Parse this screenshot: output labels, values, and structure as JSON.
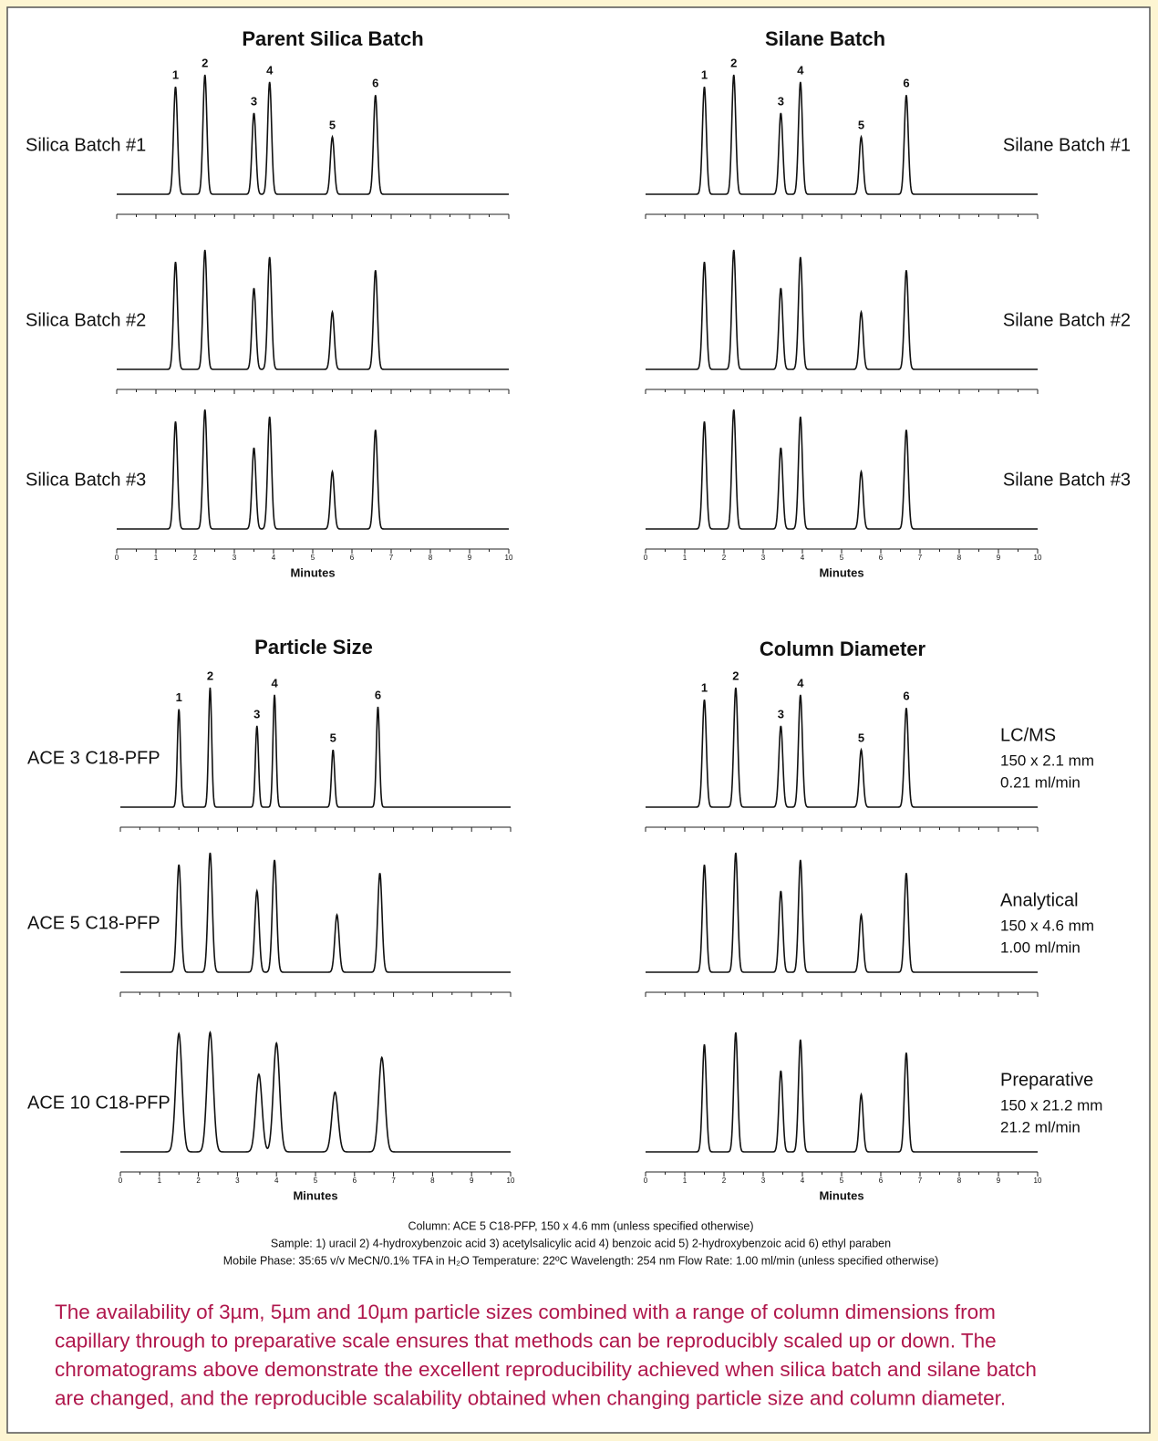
{
  "chart_data": [
    {
      "type": "chromatogram",
      "title": "Parent Silica Batch",
      "xlabel": "Minutes",
      "xlim": [
        0,
        10
      ],
      "xticks": [
        0,
        1,
        2,
        3,
        4,
        5,
        6,
        7,
        8,
        9,
        10
      ],
      "peak_labels": [
        "1",
        "2",
        "3",
        "4",
        "5",
        "6"
      ],
      "series": [
        {
          "name": "Silica Batch #1",
          "color": "#111111",
          "peak_times": [
            1.5,
            2.25,
            3.5,
            3.9,
            5.5,
            6.6
          ],
          "peak_heights": [
            90,
            100,
            68,
            94,
            48,
            83
          ],
          "peak_width": 0.05
        },
        {
          "name": "Silica Batch #2",
          "color": "#111111",
          "peak_times": [
            1.5,
            2.25,
            3.5,
            3.9,
            5.5,
            6.6
          ],
          "peak_heights": [
            90,
            100,
            68,
            94,
            48,
            83
          ],
          "peak_width": 0.05
        },
        {
          "name": "Silica Batch #3",
          "color": "#111111",
          "peak_times": [
            1.5,
            2.25,
            3.5,
            3.9,
            5.5,
            6.6
          ],
          "peak_heights": [
            90,
            100,
            68,
            94,
            48,
            83
          ],
          "peak_width": 0.05
        }
      ]
    },
    {
      "type": "chromatogram",
      "title": "Silane Batch",
      "xlabel": "Minutes",
      "xlim": [
        0,
        10
      ],
      "xticks": [
        0,
        1,
        2,
        3,
        4,
        5,
        6,
        7,
        8,
        9,
        10
      ],
      "peak_labels": [
        "1",
        "2",
        "3",
        "4",
        "5",
        "6"
      ],
      "series": [
        {
          "name": "Silane Batch #1",
          "color": "#111111",
          "peak_times": [
            1.5,
            2.25,
            3.45,
            3.95,
            5.5,
            6.65
          ],
          "peak_heights": [
            90,
            100,
            68,
            94,
            48,
            83
          ],
          "peak_width": 0.05
        },
        {
          "name": "Silane Batch #2",
          "color": "#111111",
          "peak_times": [
            1.5,
            2.25,
            3.45,
            3.95,
            5.5,
            6.65
          ],
          "peak_heights": [
            90,
            100,
            68,
            94,
            48,
            83
          ],
          "peak_width": 0.05
        },
        {
          "name": "Silane Batch #3",
          "color": "#111111",
          "peak_times": [
            1.5,
            2.25,
            3.45,
            3.95,
            5.5,
            6.65
          ],
          "peak_heights": [
            90,
            100,
            68,
            94,
            48,
            83
          ],
          "peak_width": 0.05
        }
      ]
    },
    {
      "type": "chromatogram",
      "title": "Particle Size",
      "xlabel": "Minutes",
      "xlim": [
        0,
        10
      ],
      "xticks": [
        0,
        1,
        2,
        3,
        4,
        5,
        6,
        7,
        8,
        9,
        10
      ],
      "peak_labels": [
        "1",
        "2",
        "3",
        "4",
        "5",
        "6"
      ],
      "series": [
        {
          "name": "ACE 3 C18-PFP",
          "color": "#111111",
          "peak_times": [
            1.5,
            2.3,
            3.5,
            3.95,
            5.45,
            6.6
          ],
          "peak_heights": [
            82,
            100,
            68,
            94,
            48,
            84
          ],
          "peak_width": 0.04
        },
        {
          "name": "ACE 5 C18-PFP",
          "color": "#111111",
          "peak_times": [
            1.5,
            2.3,
            3.5,
            3.95,
            5.55,
            6.65
          ],
          "peak_heights": [
            90,
            100,
            68,
            94,
            48,
            83
          ],
          "peak_width": 0.055
        },
        {
          "name": "ACE 10 C18-PFP",
          "color": "#111111",
          "peak_times": [
            1.5,
            2.3,
            3.55,
            4.0,
            5.5,
            6.7
          ],
          "peak_heights": [
            99,
            100,
            65,
            91,
            50,
            79
          ],
          "peak_width": 0.08
        }
      ]
    },
    {
      "type": "chromatogram",
      "title": "Column Diameter",
      "xlabel": "Minutes",
      "xlim": [
        0,
        10
      ],
      "xticks": [
        0,
        1,
        2,
        3,
        4,
        5,
        6,
        7,
        8,
        9,
        10
      ],
      "peak_labels": [
        "1",
        "2",
        "3",
        "4",
        "5",
        "6"
      ],
      "series": [
        {
          "name": "LC/MS",
          "details": [
            "150 x 2.1 mm",
            "0.21 ml/min"
          ],
          "color": "#111111",
          "peak_times": [
            1.5,
            2.3,
            3.45,
            3.95,
            5.5,
            6.65
          ],
          "peak_heights": [
            90,
            100,
            68,
            94,
            48,
            83
          ],
          "peak_width": 0.05
        },
        {
          "name": "Analytical",
          "details": [
            "150 x 4.6 mm",
            "1.00 ml/min"
          ],
          "color": "#111111",
          "peak_times": [
            1.5,
            2.3,
            3.45,
            3.95,
            5.5,
            6.65
          ],
          "peak_heights": [
            90,
            100,
            68,
            94,
            48,
            83
          ],
          "peak_width": 0.05
        },
        {
          "name": "Preparative",
          "details": [
            "150 x 21.2 mm",
            "21.2 ml/min"
          ],
          "color": "#111111",
          "peak_times": [
            1.5,
            2.3,
            3.45,
            3.95,
            5.5,
            6.65
          ],
          "peak_heights": [
            90,
            100,
            68,
            94,
            48,
            83
          ],
          "peak_width": 0.05
        }
      ]
    }
  ],
  "footnotes": [
    "Column:  ACE 5 C18-PFP, 150 x 4.6 mm (unless specified otherwise)",
    "Sample: 1) uracil  2) 4-hydroxybenzoic acid  3) acetylsalicylic acid  4) benzoic acid  5) 2-hydroxybenzoic acid  6) ethyl paraben",
    "Mobile Phase: 35:65 v/v MeCN/0.1% TFA in H₂O    Temperature: 22ºC    Wavelength: 254 nm    Flow Rate: 1.00 ml/min (unless specified otherwise)"
  ],
  "caption": [
    "The availability of 3µm, 5µm and 10µm particle sizes combined with a range of column dimensions from",
    "capillary through to preparative scale ensures that methods can be reproducibly scaled up or down.  The",
    "chromatograms above demonstrate the excellent reproducibility achieved when silica batch and silane batch",
    "are changed, and the reproducible scalability obtained when changing particle size and column diameter."
  ]
}
